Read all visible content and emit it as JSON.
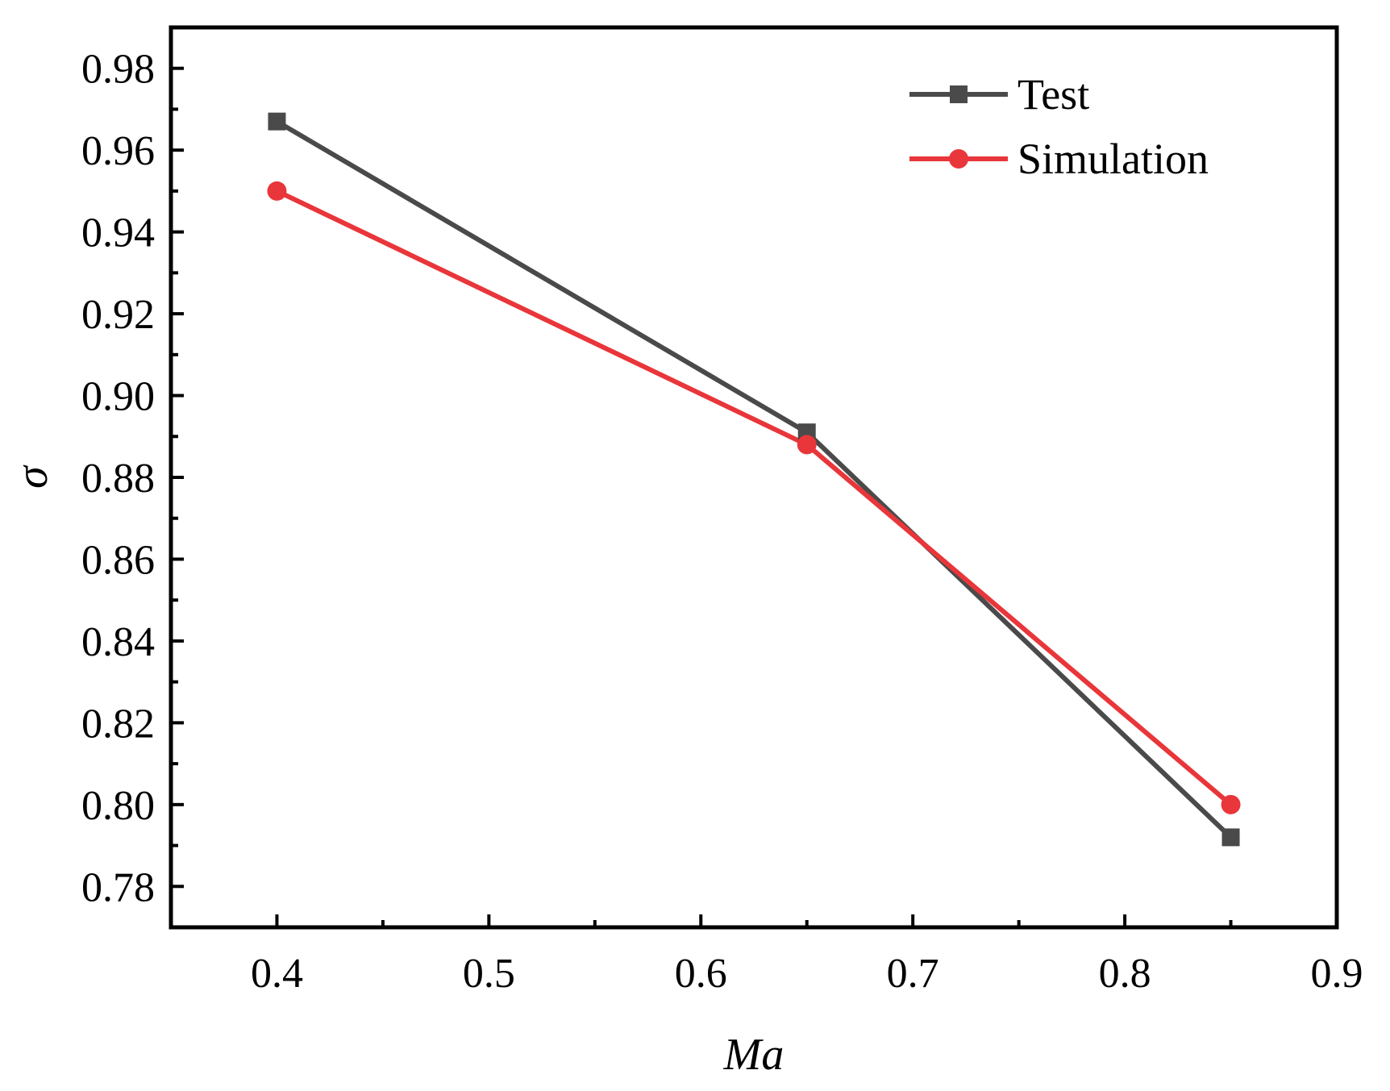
{
  "chart_data": {
    "type": "line",
    "title": "",
    "xlabel": "Ma",
    "ylabel": "σ",
    "xlim": [
      0.35,
      0.9
    ],
    "ylim": [
      0.77,
      0.99
    ],
    "x_ticks": [
      0.4,
      0.5,
      0.6,
      0.7,
      0.8,
      0.9
    ],
    "x_tick_labels": [
      "0.4",
      "0.5",
      "0.6",
      "0.7",
      "0.8",
      "0.9"
    ],
    "x_minor_ticks": [
      0.45,
      0.55,
      0.65,
      0.75,
      0.85
    ],
    "y_ticks": [
      0.78,
      0.8,
      0.82,
      0.84,
      0.86,
      0.88,
      0.9,
      0.92,
      0.94,
      0.96,
      0.98
    ],
    "y_tick_labels": [
      "0.78",
      "0.80",
      "0.82",
      "0.84",
      "0.86",
      "0.88",
      "0.90",
      "0.92",
      "0.94",
      "0.96",
      "0.98"
    ],
    "y_minor_ticks": [
      0.79,
      0.81,
      0.83,
      0.85,
      0.87,
      0.89,
      0.91,
      0.93,
      0.95,
      0.97
    ],
    "grid": false,
    "legend_position": "top-right",
    "series": [
      {
        "name": "Test",
        "marker": "square",
        "color": "#4a4a4a",
        "x": [
          0.4,
          0.65,
          0.85
        ],
        "y": [
          0.967,
          0.891,
          0.792
        ]
      },
      {
        "name": "Simulation",
        "marker": "circle",
        "color": "#e8363a",
        "x": [
          0.4,
          0.65,
          0.85
        ],
        "y": [
          0.95,
          0.888,
          0.8
        ]
      }
    ]
  }
}
